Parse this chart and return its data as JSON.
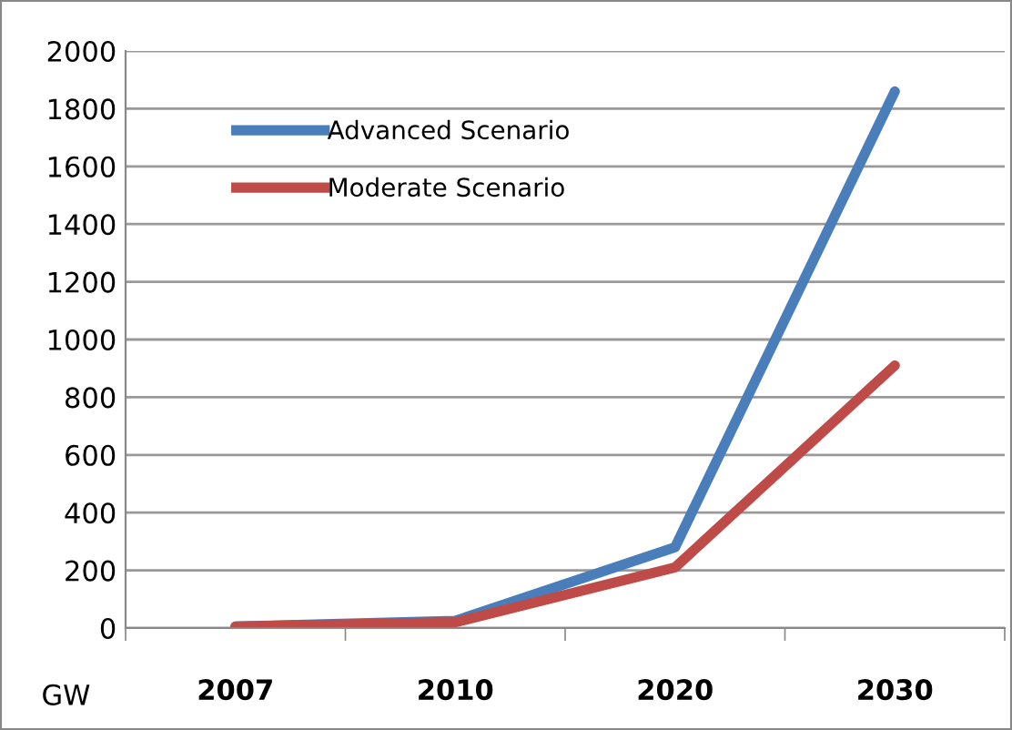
{
  "chart_data": {
    "type": "line",
    "ylabel": "GW",
    "categories": [
      "2007",
      "2010",
      "2020",
      "2030"
    ],
    "series": [
      {
        "name": "Advanced Scenario",
        "color": "#4a7ebb",
        "values": [
          5,
          25,
          280,
          1860
        ]
      },
      {
        "name": "Moderate Scenario",
        "color": "#be4b48",
        "values": [
          5,
          20,
          210,
          910
        ]
      }
    ],
    "ylim": [
      0,
      2000
    ],
    "yticks": [
      0,
      200,
      400,
      600,
      800,
      1000,
      1200,
      1400,
      1600,
      1800,
      2000
    ],
    "grid": "y",
    "legend": "top left",
    "marker": "none",
    "line_style": "solid"
  }
}
